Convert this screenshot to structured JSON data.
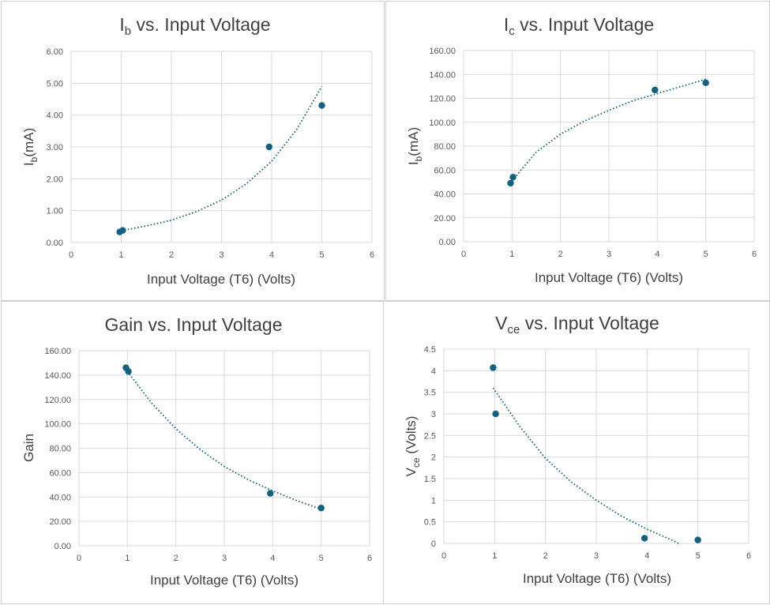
{
  "colors": {
    "marker": "#15607e",
    "trendline": "#1f5f7f",
    "grid": "#d9d9d9"
  },
  "chart_data": [
    {
      "type": "scatter",
      "title": {
        "main": "I",
        "sub": "b",
        "rest": " vs. Input Voltage"
      },
      "xlabel": {
        "main": "Input Voltage (T6) (Volts)",
        "sub": "",
        "rest": ""
      },
      "ylabel": {
        "main": "I",
        "sub": "b",
        "rest": "(mA)"
      },
      "xlim": [
        0,
        6
      ],
      "ylim": [
        0,
        6
      ],
      "xticks": [
        0,
        1,
        2,
        3,
        4,
        5,
        6
      ],
      "yticks": [
        0,
        1,
        2,
        3,
        4,
        5,
        6
      ],
      "ytick_labels": [
        "0.00",
        "1.00",
        "2.00",
        "3.00",
        "4.00",
        "5.00",
        "6.00"
      ],
      "grid": true,
      "series": [
        {
          "x": [
            0.97,
            1.03,
            3.95,
            5.0
          ],
          "y": [
            0.33,
            0.38,
            3.0,
            4.3
          ]
        }
      ],
      "trendline": {
        "kind": "exponential",
        "x": [
          1.0,
          1.5,
          2.0,
          2.5,
          3.0,
          3.5,
          4.0,
          4.5,
          5.0
        ],
        "y": [
          0.37,
          0.52,
          0.7,
          0.97,
          1.33,
          1.85,
          2.55,
          3.55,
          4.9
        ]
      }
    },
    {
      "type": "scatter",
      "title": {
        "main": "I",
        "sub": "c",
        "rest": " vs. Input Voltage"
      },
      "xlabel": {
        "main": "Input Voltage (T6) (Volts)",
        "sub": "",
        "rest": ""
      },
      "ylabel": {
        "main": "I",
        "sub": "b",
        "rest": "(mA)"
      },
      "xlim": [
        0,
        6
      ],
      "ylim": [
        0,
        160
      ],
      "xticks": [
        0,
        1,
        2,
        3,
        4,
        5,
        6
      ],
      "yticks": [
        0,
        20,
        40,
        60,
        80,
        100,
        120,
        140,
        160
      ],
      "ytick_labels": [
        "0.00",
        "20.00",
        "40.00",
        "60.00",
        "80.00",
        "100.00",
        "120.00",
        "140.00",
        "160.00"
      ],
      "grid": true,
      "series": [
        {
          "x": [
            0.97,
            1.02,
            3.95,
            5.0
          ],
          "y": [
            49,
            54,
            127,
            133
          ]
        }
      ],
      "trendline": {
        "kind": "logarithmic",
        "x": [
          1.0,
          1.5,
          2.0,
          2.5,
          3.0,
          3.5,
          4.0,
          4.5,
          5.0
        ],
        "y": [
          51,
          75,
          90,
          101,
          110,
          118,
          124,
          130,
          136
        ]
      }
    },
    {
      "type": "scatter",
      "title": {
        "main": "Gain vs. Input Voltage",
        "sub": "",
        "rest": ""
      },
      "xlabel": {
        "main": "Input Voltage (T6) (Volts)",
        "sub": "",
        "rest": ""
      },
      "ylabel": {
        "main": "Gain",
        "sub": "",
        "rest": ""
      },
      "xlim": [
        0,
        6
      ],
      "ylim": [
        0,
        160
      ],
      "xticks": [
        0,
        1,
        2,
        3,
        4,
        5,
        6
      ],
      "yticks": [
        0,
        20,
        40,
        60,
        80,
        100,
        120,
        140,
        160
      ],
      "ytick_labels": [
        "0.00",
        "20.00",
        "40.00",
        "60.00",
        "80.00",
        "100.00",
        "120.00",
        "140.00",
        "160.00"
      ],
      "grid": true,
      "series": [
        {
          "x": [
            0.97,
            1.02,
            3.95,
            5.0
          ],
          "y": [
            146,
            143,
            43,
            31
          ]
        }
      ],
      "trendline": {
        "kind": "exponential",
        "x": [
          1.0,
          1.5,
          2.0,
          2.5,
          3.0,
          3.5,
          4.0,
          4.5,
          5.0
        ],
        "y": [
          143,
          117,
          96,
          79,
          65,
          54,
          45,
          37,
          30
        ]
      }
    },
    {
      "type": "scatter",
      "title": {
        "main": "V",
        "sub": "ce",
        "rest": " vs. Input Voltage"
      },
      "xlabel": {
        "main": "Input Voltage (T6) (Volts)",
        "sub": "",
        "rest": ""
      },
      "ylabel": {
        "main": "V",
        "sub": "ce",
        "rest": " (Volts)"
      },
      "xlim": [
        0,
        6
      ],
      "ylim": [
        0,
        4.5
      ],
      "xticks": [
        0,
        1,
        2,
        3,
        4,
        5,
        6
      ],
      "yticks": [
        0,
        0.5,
        1,
        1.5,
        2,
        2.5,
        3,
        3.5,
        4,
        4.5
      ],
      "ytick_labels": [
        "0",
        "0.5",
        "1",
        "1.5",
        "2",
        "2.5",
        "3",
        "3.5",
        "4",
        "4.5"
      ],
      "grid": true,
      "series": [
        {
          "x": [
            0.97,
            1.02,
            3.95,
            5.0
          ],
          "y": [
            4.07,
            3.0,
            0.12,
            0.08
          ]
        }
      ],
      "trendline": {
        "kind": "polynomial",
        "x": [
          0.97,
          1.5,
          2.0,
          2.5,
          3.0,
          3.5,
          4.0,
          4.5,
          4.62
        ],
        "y": [
          3.6,
          2.7,
          1.97,
          1.43,
          1.0,
          0.63,
          0.33,
          0.07,
          0.0
        ]
      }
    }
  ]
}
